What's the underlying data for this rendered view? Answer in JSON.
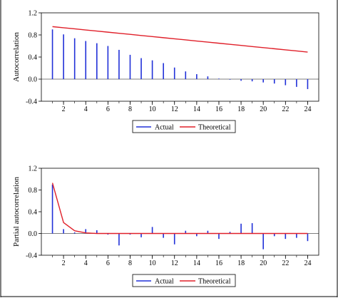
{
  "chart_data": [
    {
      "type": "bar",
      "ylabel": "Autocorrelation",
      "ylim": [
        -0.4,
        1.2
      ],
      "yticks": [
        "1.2",
        "0.8",
        "0.4",
        "0.0",
        "-0.4"
      ],
      "ytick_values": [
        1.2,
        0.8,
        0.4,
        0.0,
        -0.4
      ],
      "xlim": [
        0,
        25
      ],
      "xticks": [
        "2",
        "4",
        "6",
        "8",
        "10",
        "12",
        "14",
        "16",
        "18",
        "20",
        "22",
        "24"
      ],
      "xtick_values": [
        2,
        4,
        6,
        8,
        10,
        12,
        14,
        16,
        18,
        20,
        22,
        24
      ],
      "legend_position": "bottom-center",
      "grid": false,
      "series": [
        {
          "name": "Actual",
          "style": "spike",
          "color": "#2030d8",
          "x": [
            1,
            2,
            3,
            4,
            5,
            6,
            7,
            8,
            9,
            10,
            11,
            12,
            13,
            14,
            15,
            16,
            17,
            18,
            19,
            20,
            21,
            22,
            23,
            24
          ],
          "values": [
            0.9,
            0.81,
            0.74,
            0.69,
            0.65,
            0.6,
            0.53,
            0.44,
            0.38,
            0.34,
            0.29,
            0.21,
            0.14,
            0.09,
            0.05,
            0.01,
            -0.01,
            -0.03,
            -0.04,
            -0.06,
            -0.08,
            -0.11,
            -0.14,
            -0.18
          ]
        },
        {
          "name": "Theoretical",
          "style": "line",
          "color": "#e0202a",
          "x": [
            1,
            2,
            3,
            4,
            5,
            6,
            7,
            8,
            9,
            10,
            11,
            12,
            13,
            14,
            15,
            16,
            17,
            18,
            19,
            20,
            21,
            22,
            23,
            24
          ],
          "values": [
            0.95,
            0.93,
            0.91,
            0.89,
            0.87,
            0.85,
            0.83,
            0.81,
            0.79,
            0.77,
            0.75,
            0.73,
            0.71,
            0.69,
            0.67,
            0.65,
            0.63,
            0.61,
            0.59,
            0.57,
            0.55,
            0.53,
            0.51,
            0.49
          ]
        }
      ]
    },
    {
      "type": "bar",
      "ylabel": "Partial  autocorrelation",
      "ylim": [
        -0.4,
        1.2
      ],
      "yticks": [
        "1.2",
        "0.8",
        "0.4",
        "0.0",
        "-0.4"
      ],
      "ytick_values": [
        1.2,
        0.8,
        0.4,
        0.0,
        -0.4
      ],
      "xlim": [
        0,
        25
      ],
      "xticks": [
        "2",
        "4",
        "6",
        "8",
        "10",
        "12",
        "14",
        "16",
        "18",
        "20",
        "22",
        "24"
      ],
      "xtick_values": [
        2,
        4,
        6,
        8,
        10,
        12,
        14,
        16,
        18,
        20,
        22,
        24
      ],
      "legend_position": "bottom-center",
      "grid": false,
      "series": [
        {
          "name": "Actual",
          "style": "spike",
          "color": "#2030d8",
          "x": [
            1,
            2,
            3,
            4,
            5,
            6,
            7,
            8,
            9,
            10,
            11,
            12,
            13,
            14,
            15,
            16,
            17,
            18,
            19,
            20,
            21,
            22,
            23,
            24
          ],
          "values": [
            0.9,
            0.08,
            0.02,
            0.08,
            0.06,
            -0.02,
            -0.22,
            -0.02,
            -0.07,
            0.12,
            -0.08,
            -0.2,
            0.05,
            -0.05,
            0.05,
            -0.1,
            0.03,
            0.18,
            0.19,
            -0.29,
            -0.05,
            -0.1,
            -0.08,
            -0.14
          ]
        },
        {
          "name": "Theoretical",
          "style": "line",
          "color": "#e0202a",
          "x": [
            1,
            2,
            3,
            4,
            5,
            6,
            7,
            8,
            9,
            10,
            11,
            12,
            13,
            14,
            15,
            16,
            17,
            18,
            19,
            20,
            21,
            22,
            23,
            24
          ],
          "values": [
            0.93,
            0.2,
            0.05,
            0.01,
            0,
            0,
            0,
            0,
            0,
            0,
            0,
            0,
            0,
            0,
            0,
            0,
            0,
            0,
            0,
            0,
            0,
            0,
            0,
            0
          ]
        }
      ]
    }
  ]
}
